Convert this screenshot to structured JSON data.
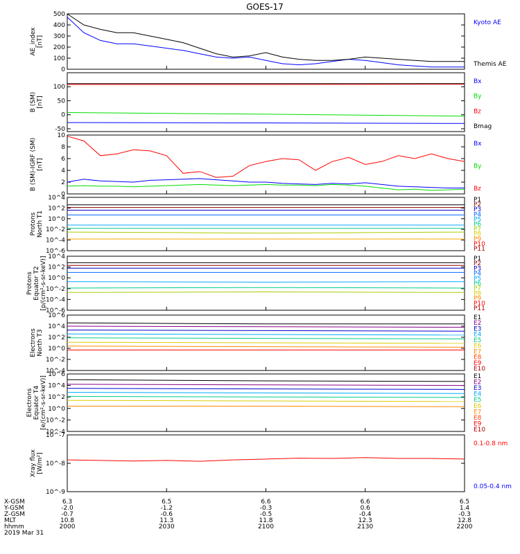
{
  "title": "GOES-17",
  "colors": {
    "black": "#000000",
    "blue": "#0000ff",
    "red": "#ff0000",
    "green": "#00dd00",
    "darkred": "#cc0000"
  },
  "x_axis": {
    "ticks": [
      "2000",
      "2030",
      "2100",
      "2130",
      "2200"
    ],
    "rows": [
      {
        "label": "X-GSM",
        "values": [
          "6.3",
          "6.5",
          "6.6",
          "6.6",
          "6.5"
        ]
      },
      {
        "label": "Y-GSM",
        "values": [
          "-2.0",
          "-1.2",
          "-0.3",
          "0.6",
          "1.4"
        ]
      },
      {
        "label": "Z-GSM",
        "values": [
          "-0.7",
          "-0.6",
          "-0.5",
          "-0.4",
          "-0.3"
        ]
      },
      {
        "label": "MLT",
        "values": [
          "10.8",
          "11.3",
          "11.8",
          "12.3",
          "12.8"
        ]
      },
      {
        "label": "hhmm",
        "values": [
          "2000",
          "2030",
          "2100",
          "2130",
          "2200"
        ]
      }
    ],
    "date": "2019 Mar 31"
  },
  "chart_data": [
    {
      "type": "line",
      "ylabel": [
        "AE_index",
        "[nT]"
      ],
      "ylim": [
        0,
        500
      ],
      "yticks": [
        "0",
        "100",
        "200",
        "300",
        "400",
        "500"
      ],
      "ytick_values": [
        0,
        100,
        200,
        300,
        400,
        500
      ],
      "x": [
        2000,
        2005,
        2010,
        2015,
        2020,
        2025,
        2030,
        2035,
        2040,
        2045,
        2050,
        2055,
        2100,
        2105,
        2110,
        2115,
        2120,
        2125,
        2130,
        2135,
        2140,
        2145,
        2150,
        2155,
        2200
      ],
      "series": [
        {
          "name": "Kyoto AE",
          "color": "#0000ff",
          "values": [
            470,
            330,
            260,
            230,
            230,
            210,
            190,
            170,
            140,
            110,
            100,
            110,
            80,
            50,
            40,
            50,
            70,
            90,
            80,
            60,
            40,
            30,
            20,
            20,
            20
          ]
        },
        {
          "name": "Themis AE",
          "color": "#000000",
          "values": [
            500,
            400,
            360,
            330,
            330,
            300,
            270,
            240,
            190,
            140,
            110,
            120,
            150,
            110,
            90,
            80,
            80,
            90,
            110,
            100,
            90,
            80,
            70,
            70,
            70
          ]
        }
      ]
    },
    {
      "type": "line",
      "ylabel": [
        "B (SM)",
        "[nT]"
      ],
      "ylim": [
        -60,
        150
      ],
      "yticks": [
        "-50",
        "0",
        "50",
        "100"
      ],
      "ytick_values": [
        -50,
        0,
        50,
        100
      ],
      "x": [
        2000,
        2100,
        2200
      ],
      "series": [
        {
          "name": "Bx",
          "color": "#0000ff",
          "values": [
            -28,
            -29,
            -31
          ]
        },
        {
          "name": "By",
          "color": "#00dd00",
          "values": [
            8,
            2,
            -5
          ]
        },
        {
          "name": "Bz",
          "color": "#ff0000",
          "values": [
            108,
            108,
            109
          ]
        },
        {
          "name": "Bmag",
          "color": "#000000",
          "values": [
            111,
            111,
            111
          ]
        }
      ]
    },
    {
      "type": "line",
      "ylabel": [
        "B (SM)-IGRF (SM)",
        "[nT]"
      ],
      "ylim": [
        0,
        10
      ],
      "yticks": [
        "0",
        "2",
        "4",
        "6",
        "8",
        "10"
      ],
      "ytick_values": [
        0,
        2,
        4,
        6,
        8,
        10
      ],
      "x": [
        2000,
        2005,
        2010,
        2015,
        2020,
        2025,
        2030,
        2035,
        2040,
        2045,
        2050,
        2055,
        2100,
        2105,
        2110,
        2115,
        2120,
        2125,
        2130,
        2135,
        2140,
        2145,
        2150,
        2155,
        2200
      ],
      "series": [
        {
          "name": "Bx",
          "color": "#0000ff",
          "values": [
            2.0,
            2.5,
            2.2,
            2.1,
            2.0,
            2.3,
            2.4,
            2.5,
            2.6,
            2.4,
            2.2,
            2.0,
            2.0,
            1.8,
            1.7,
            1.6,
            1.8,
            1.7,
            1.9,
            1.6,
            1.3,
            1.2,
            1.1,
            1.0,
            1.0
          ]
        },
        {
          "name": "By",
          "color": "#00dd00",
          "values": [
            1.3,
            1.4,
            1.3,
            1.3,
            1.2,
            1.3,
            1.4,
            1.5,
            1.6,
            1.5,
            1.4,
            1.5,
            1.6,
            1.5,
            1.5,
            1.4,
            1.6,
            1.5,
            1.3,
            1.0,
            0.7,
            0.8,
            0.6,
            0.7,
            0.8
          ]
        },
        {
          "name": "Bz",
          "color": "#ff0000",
          "values": [
            9.8,
            9.0,
            6.5,
            6.8,
            7.5,
            7.3,
            6.5,
            3.5,
            3.8,
            2.8,
            3.0,
            4.8,
            5.5,
            6.0,
            5.8,
            4.0,
            5.5,
            6.2,
            5.0,
            5.5,
            6.5,
            6.0,
            6.8,
            6.0,
            5.5
          ]
        }
      ]
    },
    {
      "type": "line",
      "ylabel": [
        "Protons",
        "North T1"
      ],
      "scale": "log",
      "ylim": [
        -6,
        4
      ],
      "yticks": [
        "10^4",
        "10^2",
        "10^0",
        "10^-2",
        "10^-4",
        "10^-6"
      ],
      "ytick_values": [
        4,
        2,
        0,
        -2,
        -4,
        -6
      ],
      "x": [
        2000,
        2100,
        2200
      ],
      "series": [
        {
          "name": "P1",
          "color": "#000000",
          "values": [
            2.6,
            2.6,
            2.6
          ]
        },
        {
          "name": "P2",
          "color": "#880000",
          "values": [
            2.1,
            2.1,
            2.1
          ]
        },
        {
          "name": "P3",
          "color": "#0000cc",
          "values": [
            1.6,
            1.6,
            1.6
          ]
        },
        {
          "name": "P4",
          "color": "#0066ff",
          "values": [
            0.7,
            0.7,
            0.7
          ]
        },
        {
          "name": "P5",
          "color": "#00aaff",
          "values": [
            -1.2,
            -1.2,
            -1.2
          ]
        },
        {
          "name": "P6",
          "color": "#00cc88",
          "values": [
            -1.8,
            -1.8,
            -1.8
          ]
        },
        {
          "name": "P7",
          "color": "#aacc00",
          "values": [
            -2.5,
            -2.7,
            -2.5
          ]
        },
        {
          "name": "P8",
          "color": "#ffaa00",
          "values": [
            -3.8,
            -3.8,
            -3.8
          ]
        }
      ],
      "labels": [
        "P1",
        "P2",
        "P3",
        "P4",
        "P5",
        "P6",
        "P7",
        "P8",
        "P9",
        "P10",
        "P11"
      ],
      "label_colors": [
        "#000000",
        "#880000",
        "#0000cc",
        "#0066ff",
        "#00aaff",
        "#00cc88",
        "#aacc00",
        "#ddcc00",
        "#ff8800",
        "#ff0000",
        "#aa0000"
      ]
    },
    {
      "type": "line",
      "ylabel": [
        "Protons",
        "Equator T2",
        "[p/(cm²-s-sr-keV)]"
      ],
      "scale": "log",
      "ylim": [
        -6,
        4
      ],
      "yticks": [
        "10^4",
        "10^2",
        "10^0",
        "10^-2",
        "10^-4",
        "10^-6"
      ],
      "ytick_values": [
        4,
        2,
        0,
        -2,
        -4,
        -6
      ],
      "x": [
        2000,
        2100,
        2200
      ],
      "series": [
        {
          "name": "P1",
          "color": "#000000",
          "values": [
            2.8,
            2.8,
            2.8
          ]
        },
        {
          "name": "P2",
          "color": "#880000",
          "values": [
            2.3,
            2.3,
            2.3
          ]
        },
        {
          "name": "P3",
          "color": "#0000cc",
          "values": [
            1.8,
            1.8,
            1.8
          ]
        },
        {
          "name": "P4",
          "color": "#0066ff",
          "values": [
            1.0,
            1.0,
            1.0
          ]
        },
        {
          "name": "P5",
          "color": "#00aaff",
          "values": [
            -0.7,
            -0.8,
            -0.7
          ]
        },
        {
          "name": "P6",
          "color": "#00cc88",
          "values": [
            -1.9,
            -1.8,
            -1.9
          ]
        },
        {
          "name": "P7",
          "color": "#aacc00",
          "values": [
            -2.7,
            -2.6,
            -2.7
          ]
        }
      ],
      "labels": [
        "P1",
        "P2",
        "P3",
        "P4",
        "P5",
        "P6",
        "P7",
        "P8",
        "P9",
        "P10",
        "P11"
      ],
      "label_colors": [
        "#000000",
        "#880000",
        "#0000cc",
        "#0066ff",
        "#00aaff",
        "#00cc88",
        "#aacc00",
        "#ddcc00",
        "#ff8800",
        "#ff0000",
        "#aa0000"
      ]
    },
    {
      "type": "line",
      "ylabel": [
        "Electrons",
        "North T3"
      ],
      "scale": "log",
      "ylim": [
        -4,
        6
      ],
      "yticks": [
        "10^6",
        "10^4",
        "10^2",
        "10^0",
        "10^-2",
        "10^-4"
      ],
      "ytick_values": [
        6,
        4,
        2,
        0,
        -2,
        -4
      ],
      "x": [
        2000,
        2100,
        2200
      ],
      "series": [
        {
          "name": "E1",
          "color": "#000000",
          "values": [
            4.6,
            4.4,
            4.4
          ]
        },
        {
          "name": "E2",
          "color": "#880088",
          "values": [
            4.0,
            3.9,
            3.8
          ]
        },
        {
          "name": "E3",
          "color": "#0000cc",
          "values": [
            3.3,
            3.2,
            3.1
          ]
        },
        {
          "name": "E4",
          "color": "#00aaff",
          "values": [
            2.6,
            2.5,
            2.4
          ]
        },
        {
          "name": "E5",
          "color": "#00cc88",
          "values": [
            1.9,
            1.8,
            1.7
          ]
        },
        {
          "name": "E6",
          "color": "#ddcc00",
          "values": [
            1.1,
            1.0,
            0.9
          ]
        },
        {
          "name": "E7",
          "color": "#ff8800",
          "values": [
            0.4,
            0.3,
            0.2
          ]
        },
        {
          "name": "E8",
          "color": "#ff0000",
          "values": [
            -0.3,
            -0.3,
            -0.3
          ]
        }
      ],
      "labels": [
        "E1",
        "E2",
        "E3",
        "E4",
        "E5",
        "E6",
        "E7",
        "E8",
        "E9",
        "E10"
      ],
      "label_colors": [
        "#000000",
        "#880088",
        "#0000cc",
        "#00aaff",
        "#00cc88",
        "#ddcc00",
        "#ff8800",
        "#ff4400",
        "#ff0000",
        "#aa0000"
      ]
    },
    {
      "type": "line",
      "ylabel": [
        "Electrons",
        "Equator T4",
        "[e/(cm²-s-sr-keV)]"
      ],
      "scale": "log",
      "ylim": [
        -4,
        6
      ],
      "yticks": [
        "10^6",
        "10^4",
        "10^2",
        "10^0",
        "10^-2",
        "10^-4"
      ],
      "ytick_values": [
        6,
        4,
        2,
        0,
        -2,
        -4
      ],
      "x": [
        2000,
        2100,
        2200
      ],
      "series": [
        {
          "name": "E1",
          "color": "#000000",
          "values": [
            5.0,
            4.8,
            4.7
          ]
        },
        {
          "name": "E2",
          "color": "#880088",
          "values": [
            4.2,
            4.1,
            4.0
          ]
        },
        {
          "name": "E3",
          "color": "#0000cc",
          "values": [
            3.5,
            3.4,
            3.3
          ]
        },
        {
          "name": "E4",
          "color": "#00aaff",
          "values": [
            2.8,
            2.7,
            2.6
          ]
        },
        {
          "name": "E5",
          "color": "#00cc88",
          "values": [
            2.1,
            2.0,
            1.9
          ]
        },
        {
          "name": "E6",
          "color": "#ddcc00",
          "values": [
            1.4,
            1.3,
            1.2
          ]
        },
        {
          "name": "E7",
          "color": "#ff8800",
          "values": [
            0.4,
            0.4,
            0.3
          ]
        }
      ],
      "labels": [
        "E1",
        "E2",
        "E3",
        "E4",
        "E5",
        "E6",
        "E7",
        "E8",
        "E9",
        "E10"
      ],
      "label_colors": [
        "#000000",
        "#880088",
        "#0000cc",
        "#00aaff",
        "#00cc88",
        "#ddcc00",
        "#ff8800",
        "#ff4400",
        "#ff0000",
        "#aa0000"
      ]
    },
    {
      "type": "line",
      "ylabel": [
        "Xray flux",
        "[W/m²]"
      ],
      "scale": "log",
      "ylim": [
        -9,
        -7
      ],
      "yticks": [
        "10^-7",
        "10^-8",
        "10^-9"
      ],
      "ytick_values": [
        -7,
        -8,
        -9
      ],
      "x": [
        2000,
        2010,
        2020,
        2030,
        2040,
        2050,
        2100,
        2110,
        2120,
        2130,
        2140,
        2150,
        2200
      ],
      "series": [
        {
          "name": "0.1-0.8 nm",
          "color": "#ff0000",
          "values": [
            -7.88,
            -7.9,
            -7.92,
            -7.9,
            -7.93,
            -7.88,
            -7.85,
            -7.82,
            -7.83,
            -7.8,
            -7.83,
            -7.83,
            -7.85
          ]
        }
      ],
      "labels": [
        "0.1-0.8 nm",
        "0.05-0.4 nm"
      ],
      "label_colors": [
        "#ff0000",
        "#0000ff"
      ]
    }
  ]
}
